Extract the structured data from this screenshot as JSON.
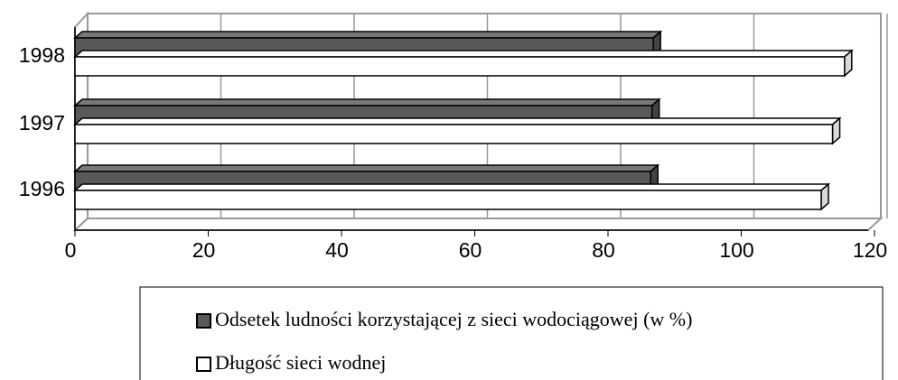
{
  "chart_data": {
    "type": "bar3d_horizontal",
    "categories": [
      "1996",
      "1997",
      "1998"
    ],
    "series": [
      {
        "name": "Odsetek ludności korzystającej z sieci wodociągowej (w %)",
        "color": "#595959",
        "values": [
          86.4,
          86.6,
          86.8
        ]
      },
      {
        "name": "Długość sieci wodnej",
        "color": "#ffffff",
        "values": [
          112,
          113.7,
          115.5
        ]
      }
    ],
    "xlim": [
      0,
      120
    ],
    "xticks": [
      0,
      20,
      40,
      60,
      80,
      100,
      120
    ],
    "grid": true,
    "legend": "bottom"
  }
}
